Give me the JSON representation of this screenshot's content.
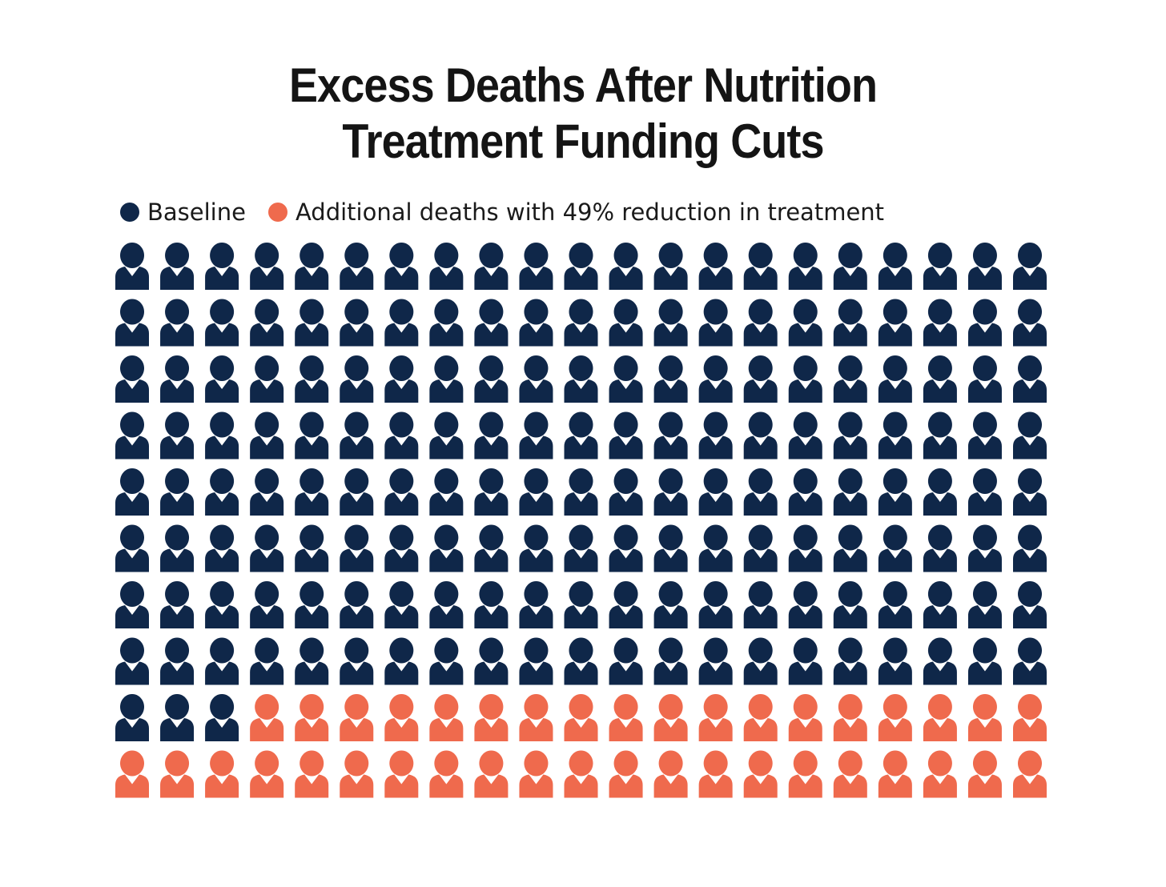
{
  "chart_data": {
    "type": "waffle",
    "title_lines": [
      "Excess Deaths After Nutrition",
      "Treatment Funding Cuts"
    ],
    "series": [
      {
        "name": "Baseline",
        "count": 171,
        "color": "#0f2749"
      },
      {
        "name": "Additional deaths with 49% reduction in treatment",
        "count": 39,
        "color": "#ef6a4d"
      }
    ],
    "grid": {
      "rows": 10,
      "columns": 21,
      "fill_order": "row-major"
    },
    "icon": "person-icon",
    "legend_position": "top-left"
  }
}
